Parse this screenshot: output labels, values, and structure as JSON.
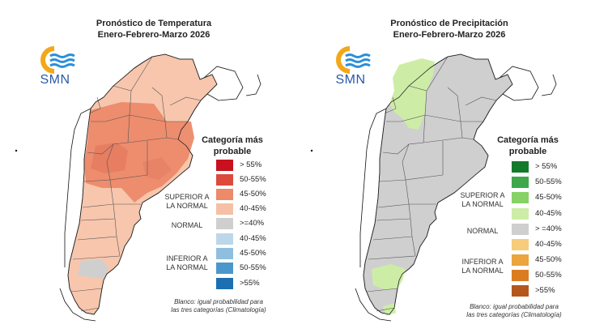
{
  "colors": {
    "temp_sup_1": "#c8101e",
    "temp_sup_2": "#dd4a3c",
    "temp_sup_3": "#ec8a6a",
    "temp_sup_4": "#f5c0a6",
    "neutral": "#cfcfcf",
    "temp_inf_1": "#bdd7ea",
    "temp_inf_2": "#8fbfdf",
    "temp_inf_3": "#4b97cc",
    "temp_inf_4": "#1c6fb0",
    "prec_sup_1": "#137a2c",
    "prec_sup_2": "#3ea84a",
    "prec_sup_3": "#86d266",
    "prec_sup_4": "#cdeda6",
    "prec_inf_1": "#f7cc7a",
    "prec_inf_2": "#eba43e",
    "prec_inf_3": "#dc7c22",
    "prec_inf_4": "#b5561c",
    "logo_orange": "#f2a818",
    "logo_blue": "#2b8fd8"
  },
  "temperature": {
    "title_line1": "Pronóstico de Temperatura",
    "title_line2": "Enero-Febrero-Marzo 2026",
    "logo_text": "SMN",
    "legend_title_line1": "Categoría más",
    "legend_title_line2": "probable",
    "legend_items": [
      "> 55%",
      "50-55%",
      "45-50%",
      "40-45%",
      ">=40%",
      "40-45%",
      "45-50%",
      "50-55%",
      ">55%"
    ],
    "group_superior_line1": "SUPERIOR A",
    "group_superior_line2": "LA NORMAL",
    "group_normal": "NORMAL",
    "group_inferior_line1": "INFERIOR A",
    "group_inferior_line2": "LA NORMAL",
    "note_line1": "Blanco: igual probabilidad para",
    "note_line2": "las tres categorías (Climatología)"
  },
  "precipitation": {
    "title_line1": "Pronóstico de Precipitación",
    "title_line2": "Enero-Febrero-Marzo 2026",
    "logo_text": "SMN",
    "legend_title_line1": "Categoría más",
    "legend_title_line2": "probable",
    "legend_items": [
      "> 55%",
      "50-55%",
      "45-50%",
      "40-45%",
      "> =40%",
      "40-45%",
      "45-50%",
      "50-55%",
      ">55%"
    ],
    "group_superior_line1": "SUPERIOR A",
    "group_superior_line2": "LA NORMAL",
    "group_normal": "NORMAL",
    "group_inferior_line1": "INFERIOR A",
    "group_inferior_line2": "LA NORMAL",
    "note_line1": "Blanco: igual probabilidad para",
    "note_line2": "las tres categorías (Climatología)"
  }
}
